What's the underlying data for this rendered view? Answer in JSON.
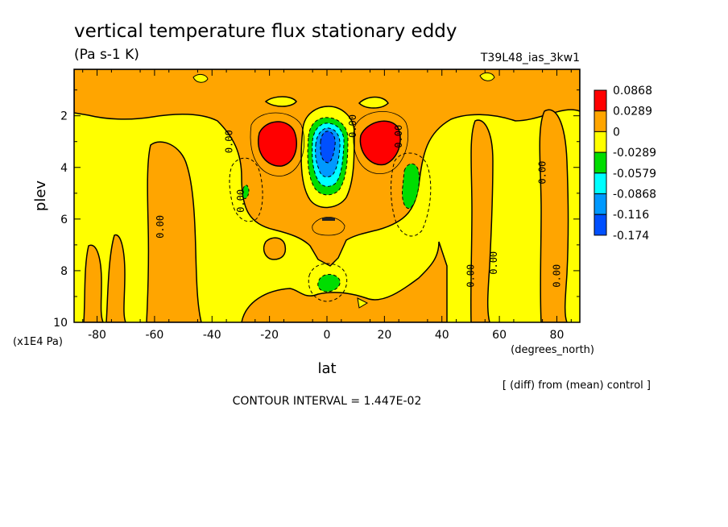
{
  "chart_data": {
    "type": "heatmap",
    "title": "vertical temperature flux stationary eddy",
    "units": "(Pa s-1 K)",
    "run_label": "T39L48_ias_3kw1",
    "xlabel": "lat",
    "x_units": "(degrees_north)",
    "ylabel": "plev",
    "y_units": "(x1E4 Pa)",
    "xlim": [
      -88,
      88
    ],
    "ylim": [
      0.2,
      10
    ],
    "y_inverted": true,
    "x_ticks": [
      "-80",
      "-60",
      "-40",
      "-20",
      "0",
      "20",
      "40",
      "60",
      "80"
    ],
    "x_tick_values": [
      -80,
      -60,
      -40,
      -20,
      0,
      20,
      40,
      60,
      80
    ],
    "y_ticks": [
      "2",
      "4",
      "6",
      "8",
      "10"
    ],
    "y_tick_values": [
      2,
      4,
      6,
      8,
      10
    ],
    "legend": {
      "placement": "right",
      "levels": [
        "0.0868",
        "0.0289",
        "0",
        "-0.0289",
        "-0.0579",
        "-0.0868",
        "-0.116",
        "-0.174"
      ],
      "colors": [
        "#ff0000",
        "#ffa500",
        "#ffff00",
        "#00dd00",
        "#00ffff",
        "#0099ff",
        "#0050ff"
      ]
    },
    "contour_labels": [
      {
        "text": "0.00",
        "x": -30,
        "y": 5.3
      },
      {
        "text": "0.00",
        "x": -58,
        "y": 6.3
      },
      {
        "text": "0.00",
        "x": -34,
        "y": 3.0
      },
      {
        "text": "0.00",
        "x": 9,
        "y": 2.4
      },
      {
        "text": "0.00",
        "x": 25,
        "y": 2.8
      },
      {
        "text": "0.00",
        "x": 75,
        "y": 4.2
      },
      {
        "text": "0.00",
        "x": 58,
        "y": 7.7
      },
      {
        "text": "0.00",
        "x": 50,
        "y": 8.2
      },
      {
        "text": "0.00",
        "x": 80,
        "y": 8.2
      }
    ],
    "footnote": "[ (diff) from (mean) control ]",
    "contour_interval": "CONTOUR INTERVAL = 1.447E-02"
  },
  "colors": {
    "red": "#ff0000",
    "orange": "#ffa500",
    "yellow": "#ffff00",
    "green": "#00dd00",
    "cyan": "#00ffff",
    "lightblue": "#0099ff",
    "blue": "#0050ff"
  }
}
